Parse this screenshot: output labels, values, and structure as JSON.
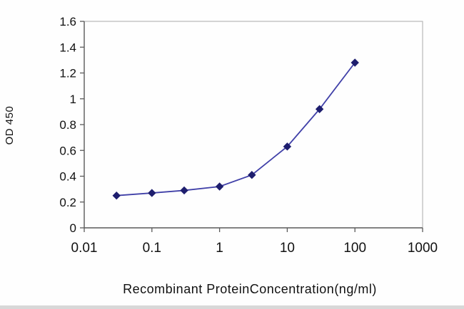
{
  "chart_data": {
    "type": "line",
    "title": "",
    "xlabel": "Recombinant ProteinConcentration(ng/ml)",
    "ylabel": "OD 450",
    "x_scale": "log",
    "xlim": [
      0.01,
      1000
    ],
    "ylim": [
      0,
      1.6
    ],
    "x_ticks": [
      0.01,
      0.1,
      1,
      10,
      100,
      1000
    ],
    "x_tick_labels": [
      "0.01",
      "0.1",
      "1",
      "10",
      "100",
      "1000"
    ],
    "y_ticks": [
      0,
      0.2,
      0.4,
      0.6,
      0.8,
      1,
      1.2,
      1.4,
      1.6
    ],
    "y_tick_labels": [
      "0",
      "0.2",
      "0.4",
      "0.6",
      "0.8",
      "1",
      "1.2",
      "1.4",
      "1.6"
    ],
    "grid": false,
    "legend": "none",
    "series": [
      {
        "name": "OD 450",
        "marker": "diamond",
        "x": [
          0.03,
          0.1,
          0.3,
          1,
          3,
          10,
          30,
          100
        ],
        "y": [
          0.25,
          0.27,
          0.29,
          0.32,
          0.41,
          0.63,
          0.92,
          1.28
        ]
      }
    ],
    "colors": {
      "line": "#4040a8",
      "marker": "#1e1e6e",
      "axis": "#5a5a5a",
      "plot_border": "#aaaaaa",
      "tick_text": "#111111"
    }
  }
}
